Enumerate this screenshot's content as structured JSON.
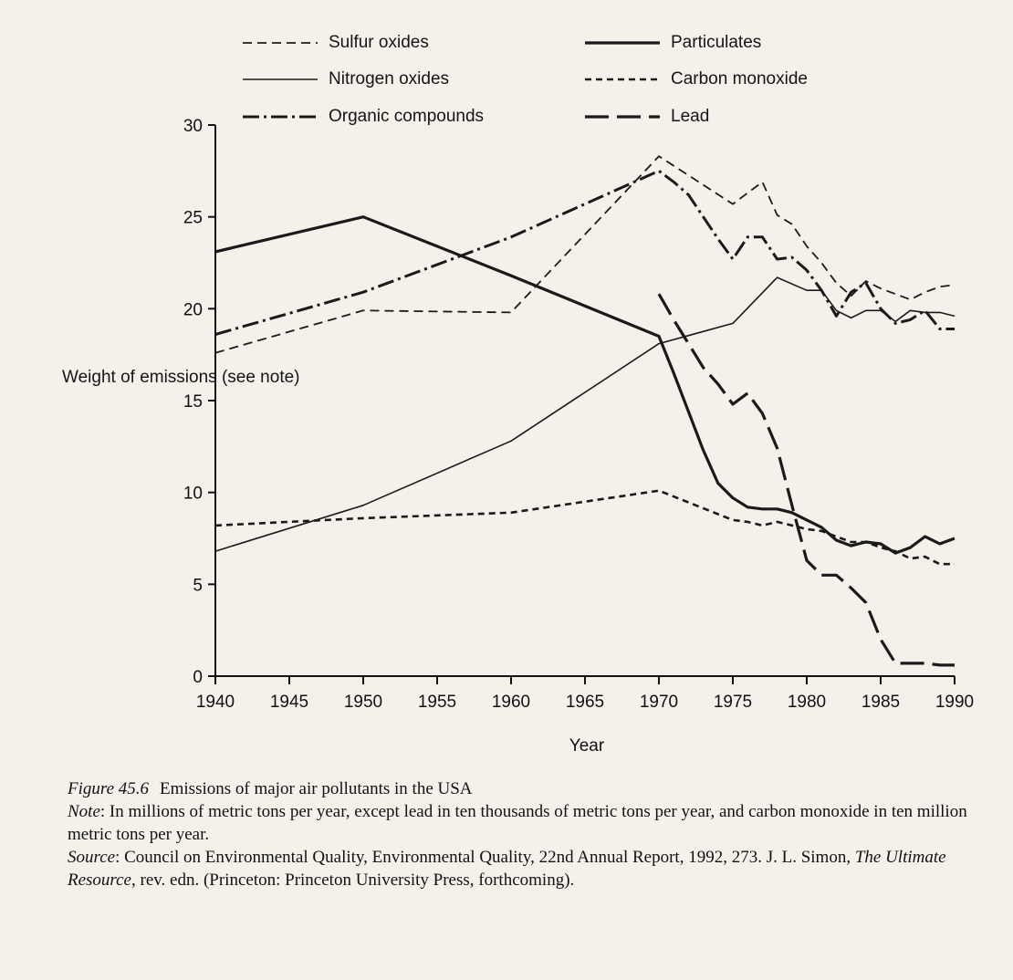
{
  "chart_data": {
    "type": "line",
    "xlabel": "Year",
    "ylabel": "Weight of emissions (see note)",
    "xlim": [
      1940,
      1990
    ],
    "ylim": [
      0,
      30
    ],
    "xticks": [
      1940,
      1945,
      1950,
      1955,
      1960,
      1965,
      1970,
      1975,
      1980,
      1985,
      1990
    ],
    "yticks": [
      0,
      5,
      10,
      15,
      20,
      25,
      30
    ],
    "grid": false,
    "legend_position": "top",
    "series": [
      {
        "name": "Sulfur oxides",
        "style": "dashed",
        "x": [
          1940,
          1950,
          1960,
          1970,
          1975,
          1977,
          1978,
          1979,
          1980,
          1981,
          1982,
          1983,
          1984,
          1985,
          1986,
          1987,
          1988,
          1989,
          1990
        ],
        "y": [
          17.6,
          19.9,
          19.8,
          28.3,
          25.7,
          26.9,
          25.1,
          24.6,
          23.4,
          22.5,
          21.4,
          20.7,
          21.5,
          21.1,
          20.8,
          20.5,
          20.9,
          21.2,
          21.3
        ]
      },
      {
        "name": "Particulates",
        "style": "solid-thick",
        "x": [
          1940,
          1950,
          1960,
          1970,
          1971,
          1972,
          1973,
          1974,
          1975,
          1976,
          1977,
          1978,
          1979,
          1980,
          1981,
          1982,
          1983,
          1984,
          1985,
          1986,
          1987,
          1988,
          1989,
          1990
        ],
        "y": [
          23.1,
          25.0,
          21.8,
          18.5,
          16.5,
          14.4,
          12.3,
          10.5,
          9.7,
          9.2,
          9.1,
          9.1,
          8.9,
          8.5,
          8.1,
          7.4,
          7.1,
          7.3,
          7.2,
          6.7,
          7.0,
          7.6,
          7.2,
          7.5
        ]
      },
      {
        "name": "Nitrogen oxides",
        "style": "solid-thin",
        "x": [
          1940,
          1950,
          1960,
          1970,
          1975,
          1978,
          1980,
          1981,
          1982,
          1983,
          1984,
          1985,
          1986,
          1987,
          1988,
          1989,
          1990
        ],
        "y": [
          6.8,
          9.3,
          12.8,
          18.1,
          19.2,
          21.7,
          21.0,
          21.0,
          19.9,
          19.5,
          19.9,
          19.9,
          19.3,
          19.9,
          19.8,
          19.8,
          19.6
        ]
      },
      {
        "name": "Carbon monoxide",
        "style": "short-dash",
        "x": [
          1940,
          1950,
          1960,
          1970,
          1975,
          1976,
          1977,
          1978,
          1979,
          1980,
          1981,
          1982,
          1983,
          1984,
          1985,
          1986,
          1987,
          1988,
          1989,
          1990
        ],
        "y": [
          8.2,
          8.6,
          8.9,
          10.1,
          8.5,
          8.4,
          8.2,
          8.4,
          8.2,
          8.0,
          7.9,
          7.6,
          7.3,
          7.3,
          7.0,
          6.8,
          6.4,
          6.5,
          6.1,
          6.1
        ]
      },
      {
        "name": "Organic compounds",
        "style": "dash-dot",
        "x": [
          1940,
          1950,
          1960,
          1970,
          1971,
          1972,
          1973,
          1974,
          1975,
          1976,
          1977,
          1978,
          1979,
          1980,
          1981,
          1982,
          1983,
          1984,
          1985,
          1986,
          1987,
          1988,
          1989,
          1990
        ],
        "y": [
          18.6,
          20.9,
          23.9,
          27.5,
          26.9,
          26.2,
          25.0,
          23.8,
          22.7,
          23.9,
          23.9,
          22.7,
          22.8,
          22.1,
          21.0,
          19.6,
          20.9,
          21.4,
          20.0,
          19.2,
          19.4,
          19.9,
          18.9,
          18.9
        ]
      },
      {
        "name": "Lead",
        "style": "long-dash",
        "x": [
          1970,
          1971,
          1972,
          1973,
          1974,
          1975,
          1976,
          1977,
          1978,
          1979,
          1980,
          1981,
          1982,
          1983,
          1984,
          1985,
          1986,
          1987,
          1988,
          1989,
          1990
        ],
        "y": [
          20.8,
          19.4,
          18.1,
          16.8,
          15.9,
          14.8,
          15.4,
          14.3,
          12.4,
          9.3,
          6.3,
          5.5,
          5.5,
          4.8,
          4.0,
          2.0,
          0.7,
          0.7,
          0.7,
          0.6,
          0.6
        ]
      }
    ]
  },
  "caption": {
    "figure_label": "Figure 45.6",
    "figure_title": "Emissions of major air pollutants in the USA",
    "note_label": "Note",
    "note_text": ": In millions of metric tons per year, except lead in ten thousands of metric tons per year, and carbon monoxide in ten million metric tons per year.",
    "source_label": "Source",
    "source_text_1": ": Council on Environmental Quality, Environmental Quality, 22nd Annual Report, 1992, 273. J. L. Simon, ",
    "source_book": "The Ultimate Resource",
    "source_text_2": ", rev. edn. (Princeton: Princeton University Press, forthcoming)."
  }
}
